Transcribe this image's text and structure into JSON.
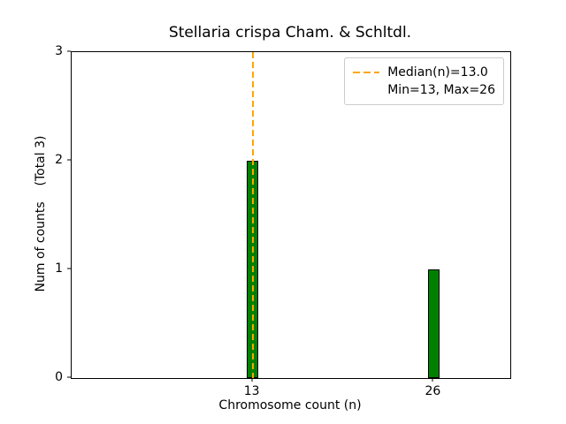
{
  "chart_data": {
    "type": "bar",
    "title": "Stellaria crispa Cham. & Schltdl.",
    "xlabel": "Chromosome count (n)",
    "ylabel": "Num of counts    (Total 3)",
    "categories": [
      13,
      26
    ],
    "values": [
      2,
      1
    ],
    "total_counts": 3,
    "ylim": [
      0,
      3
    ],
    "yticks": [
      0,
      1,
      2,
      3
    ],
    "xlim": [
      0,
      31.5
    ],
    "bar_width_units": 0.8,
    "bar_color": "#008000",
    "bar_edge_color": "#000000",
    "median_line": {
      "x": 13,
      "color": "#FFA500",
      "style": "dashed"
    },
    "legend": {
      "position": "upper right",
      "entries": [
        "Median(n)=13.0",
        "Min=13, Max=26"
      ]
    },
    "min": 13,
    "max": 26,
    "grid": false
  }
}
